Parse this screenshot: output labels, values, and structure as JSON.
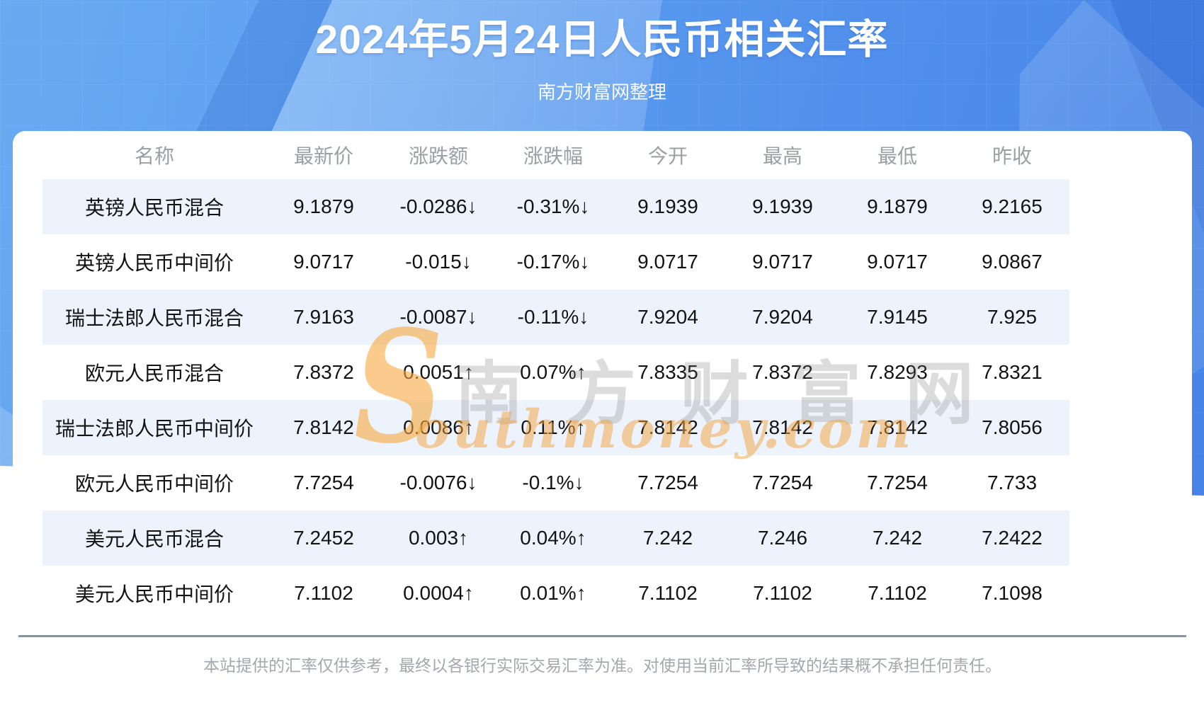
{
  "chart_data": {
    "type": "table",
    "title": "2024年5月24日人民币相关汇率",
    "subtitle": "南方财富网整理",
    "columns": [
      "名称",
      "最新价",
      "涨跌额",
      "涨跌幅",
      "今开",
      "最高",
      "最低",
      "昨收"
    ],
    "rows": [
      {
        "name": "英镑人民币混合",
        "latest": "9.1879",
        "change": "-0.0286↓",
        "change_pct": "-0.31%↓",
        "open": "9.1939",
        "high": "9.1939",
        "low": "9.1879",
        "prev_close": "9.2165"
      },
      {
        "name": "英镑人民币中间价",
        "latest": "9.0717",
        "change": "-0.015↓",
        "change_pct": "-0.17%↓",
        "open": "9.0717",
        "high": "9.0717",
        "low": "9.0717",
        "prev_close": "9.0867"
      },
      {
        "name": "瑞士法郎人民币混合",
        "latest": "7.9163",
        "change": "-0.0087↓",
        "change_pct": "-0.11%↓",
        "open": "7.9204",
        "high": "7.9204",
        "low": "7.9145",
        "prev_close": "7.925"
      },
      {
        "name": "欧元人民币混合",
        "latest": "7.8372",
        "change": "0.0051↑",
        "change_pct": "0.07%↑",
        "open": "7.8335",
        "high": "7.8372",
        "low": "7.8293",
        "prev_close": "7.8321"
      },
      {
        "name": "瑞士法郎人民币中间价",
        "latest": "7.8142",
        "change": "0.0086↑",
        "change_pct": "0.11%↑",
        "open": "7.8142",
        "high": "7.8142",
        "low": "7.8142",
        "prev_close": "7.8056"
      },
      {
        "name": "欧元人民币中间价",
        "latest": "7.7254",
        "change": "-0.0076↓",
        "change_pct": "-0.1%↓",
        "open": "7.7254",
        "high": "7.7254",
        "low": "7.7254",
        "prev_close": "7.733"
      },
      {
        "name": "美元人民币混合",
        "latest": "7.2452",
        "change": "0.003↑",
        "change_pct": "0.04%↑",
        "open": "7.242",
        "high": "7.246",
        "low": "7.242",
        "prev_close": "7.2422"
      },
      {
        "name": "美元人民币中间价",
        "latest": "7.1102",
        "change": "0.0004↑",
        "change_pct": "0.01%↑",
        "open": "7.1102",
        "high": "7.1102",
        "low": "7.1102",
        "prev_close": "7.1098"
      }
    ]
  },
  "watermark": {
    "s": "S",
    "cn": "南方财富网",
    "en": "outhmoney.com"
  },
  "disclaimer": "本站提供的汇率仅供参考，最终以各银行实际交易汇率为准。对使用当前汇率所导致的结果概不承担任何责任。",
  "colors": {
    "up": "#ee0808",
    "down": "#0a930a",
    "alt_row_bg": "#edf3fc",
    "banner_blue": "#5597ee"
  }
}
